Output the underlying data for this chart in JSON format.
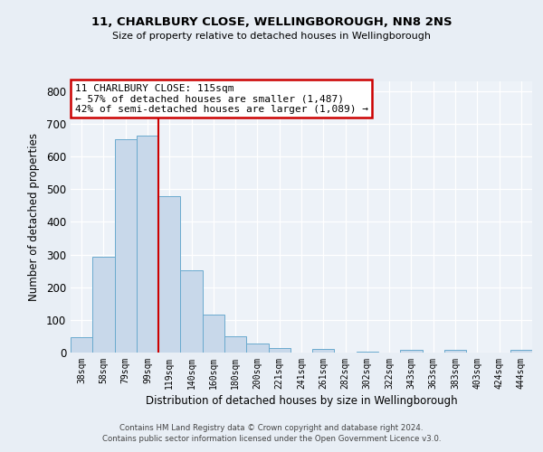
{
  "title1": "11, CHARLBURY CLOSE, WELLINGBOROUGH, NN8 2NS",
  "title2": "Size of property relative to detached houses in Wellingborough",
  "xlabel": "Distribution of detached houses by size in Wellingborough",
  "ylabel": "Number of detached properties",
  "bar_labels": [
    "38sqm",
    "58sqm",
    "79sqm",
    "99sqm",
    "119sqm",
    "140sqm",
    "160sqm",
    "180sqm",
    "200sqm",
    "221sqm",
    "241sqm",
    "261sqm",
    "282sqm",
    "302sqm",
    "322sqm",
    "343sqm",
    "363sqm",
    "383sqm",
    "403sqm",
    "424sqm",
    "444sqm"
  ],
  "bar_values": [
    48,
    293,
    652,
    665,
    478,
    252,
    115,
    49,
    28,
    15,
    0,
    11,
    0,
    4,
    0,
    7,
    0,
    7,
    0,
    0,
    7
  ],
  "bar_color": "#c8d8ea",
  "bar_edge_color": "#6aaace",
  "vline_color": "#cc0000",
  "ylim": [
    0,
    830
  ],
  "yticks": [
    0,
    100,
    200,
    300,
    400,
    500,
    600,
    700,
    800
  ],
  "annotation_title": "11 CHARLBURY CLOSE: 115sqm",
  "annotation_line1": "← 57% of detached houses are smaller (1,487)",
  "annotation_line2": "42% of semi-detached houses are larger (1,089) →",
  "annotation_box_color": "#ffffff",
  "annotation_box_edge": "#cc0000",
  "bg_color": "#e8eef5",
  "plot_bg": "#edf2f8",
  "grid_color": "#ffffff",
  "footer1": "Contains HM Land Registry data © Crown copyright and database right 2024.",
  "footer2": "Contains public sector information licensed under the Open Government Licence v3.0."
}
